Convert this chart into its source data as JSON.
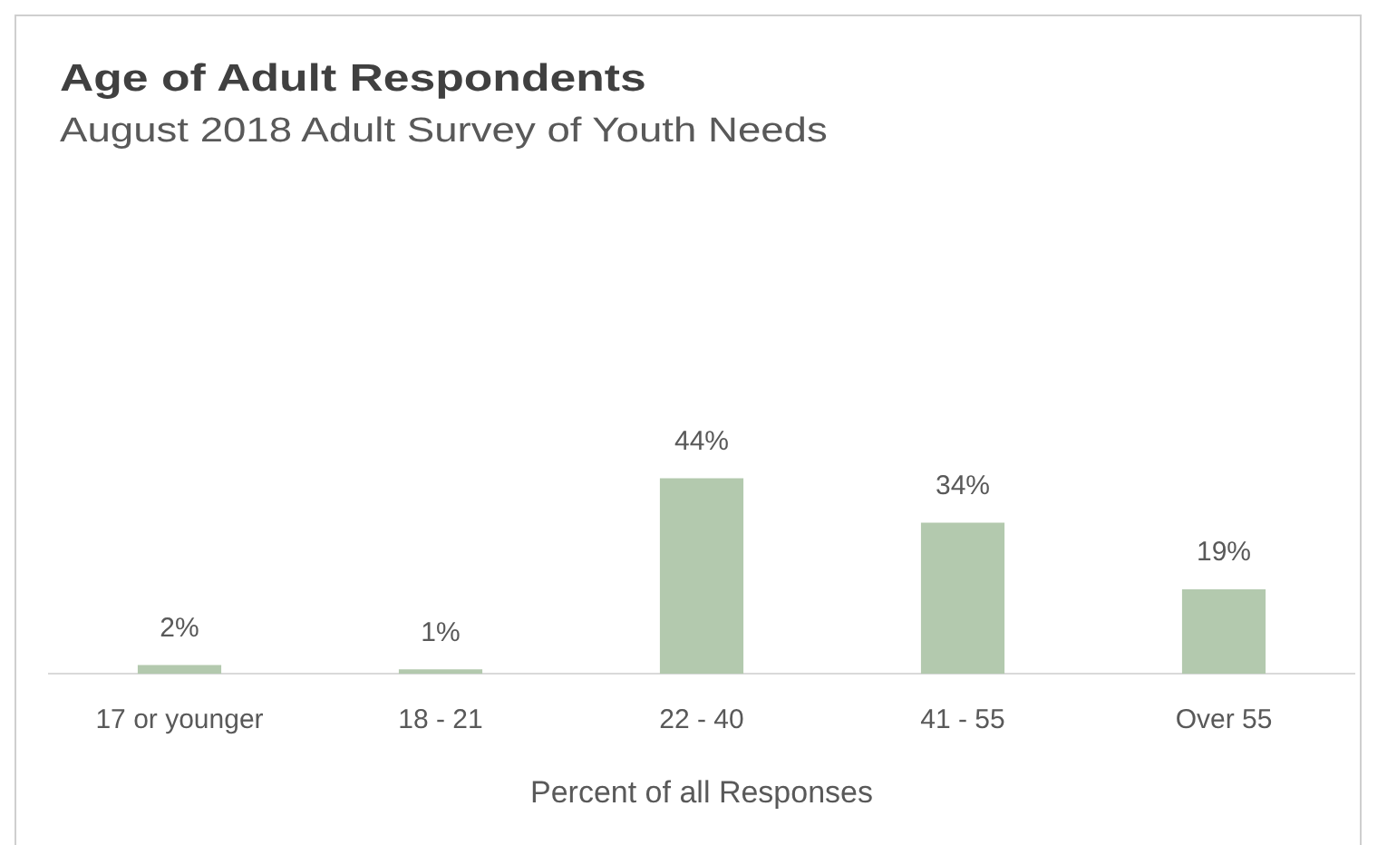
{
  "chart_data": {
    "type": "bar",
    "title": "Age of Adult Respondents",
    "subtitle": "August 2018 Adult Survey of Youth Needs",
    "xlabel": "Percent of all Responses",
    "categories": [
      "17 or younger",
      "18 - 21",
      "22 - 40",
      "41 - 55",
      "Over 55"
    ],
    "values": [
      2,
      1,
      44,
      34,
      19
    ],
    "value_labels": [
      "2%",
      "1%",
      "44%",
      "34%",
      "19%"
    ],
    "color": "#b3c9ae"
  }
}
